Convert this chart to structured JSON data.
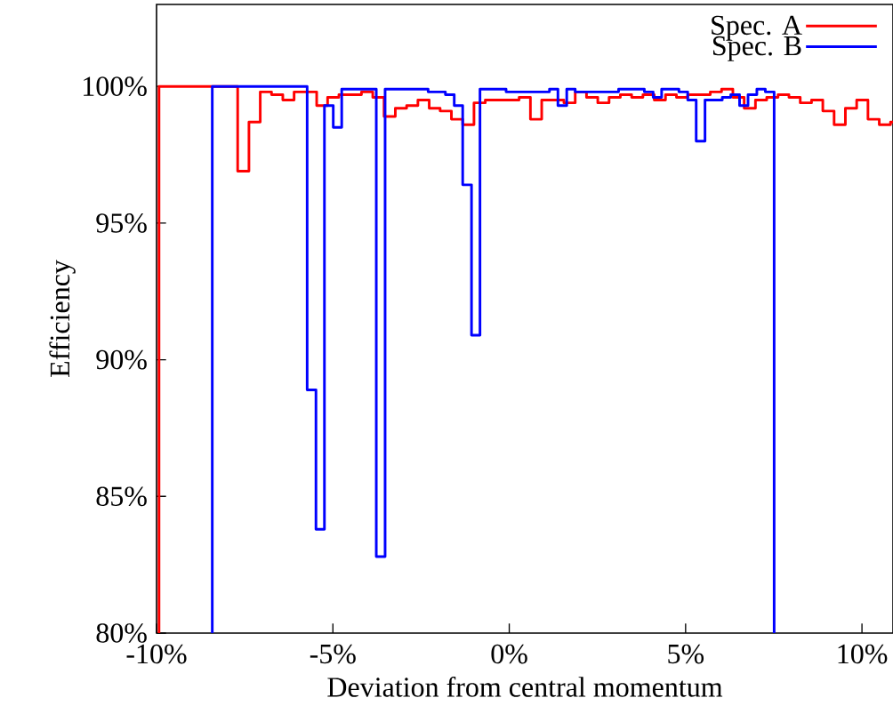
{
  "chart_data": {
    "type": "step",
    "xlabel": "Deviation from central momentum",
    "ylabel": "Efficiency",
    "xlim": [
      -10,
      10.88
    ],
    "ylim": [
      80,
      103
    ],
    "xticks": [
      {
        "value": -10,
        "label": "-10%"
      },
      {
        "value": -5,
        "label": "-5%"
      },
      {
        "value": 0,
        "label": "0%"
      },
      {
        "value": 5,
        "label": "5%"
      },
      {
        "value": 10,
        "label": "10%"
      }
    ],
    "yticks": [
      {
        "value": 80,
        "label": "80%"
      },
      {
        "value": 85,
        "label": "85%"
      },
      {
        "value": 90,
        "label": "90%"
      },
      {
        "value": 95,
        "label": "95%"
      },
      {
        "value": 100,
        "label": "100%"
      }
    ],
    "legend": "top right",
    "series": [
      {
        "name": "Spec. A",
        "color": "#ff0000",
        "x": [
          -9.93,
          -9.93,
          -7.7,
          -7.38,
          -7.06,
          -6.74,
          -6.42,
          -6.1,
          -5.46,
          -5.15,
          -4.83,
          -4.51,
          -4.19,
          -3.87,
          -3.55,
          -3.23,
          -2.91,
          -2.59,
          -2.27,
          -1.96,
          -1.64,
          -1.32,
          -1.0,
          -0.68,
          -0.36,
          -0.04,
          0.28,
          0.6,
          0.92,
          1.24,
          1.55,
          1.87,
          2.19,
          2.51,
          2.83,
          3.15,
          3.47,
          3.79,
          4.11,
          4.43,
          4.74,
          5.06,
          5.38,
          5.7,
          6.02,
          6.34,
          6.66,
          6.98,
          7.3,
          7.62,
          7.93,
          8.25,
          8.57,
          8.89,
          9.21,
          9.53,
          9.85,
          10.17,
          10.49,
          10.81,
          10.88
        ],
        "values": [
          80,
          100,
          96.9,
          98.7,
          99.8,
          99.7,
          99.5,
          99.8,
          99.3,
          99.6,
          99.7,
          99.7,
          99.8,
          99.6,
          98.9,
          99.2,
          99.3,
          99.5,
          99.2,
          99.1,
          98.8,
          98.6,
          99.4,
          99.5,
          99.5,
          99.5,
          99.6,
          98.8,
          99.5,
          99.5,
          99.4,
          99.8,
          99.6,
          99.4,
          99.6,
          99.7,
          99.6,
          99.7,
          99.5,
          99.7,
          99.6,
          99.7,
          99.7,
          99.8,
          99.9,
          99.6,
          99.2,
          99.5,
          99.6,
          99.7,
          99.6,
          99.4,
          99.5,
          99.1,
          98.6,
          99.2,
          99.5,
          98.8,
          98.6,
          98.7,
          98.7
        ]
      },
      {
        "name": "Spec. B",
        "color": "#0000ff",
        "x": [
          -8.42,
          -8.42,
          -5.73,
          -5.48,
          -5.24,
          -4.99,
          -4.75,
          -4.5,
          -4.26,
          -4.01,
          -3.77,
          -3.52,
          -3.28,
          -3.03,
          -2.79,
          -2.54,
          -2.3,
          -2.05,
          -1.81,
          -1.56,
          -1.32,
          -1.07,
          -0.83,
          -0.58,
          -0.34,
          -0.09,
          0.16,
          0.4,
          0.65,
          0.89,
          1.14,
          1.38,
          1.63,
          1.87,
          2.12,
          2.36,
          2.61,
          2.85,
          3.1,
          3.34,
          3.59,
          3.83,
          4.08,
          4.32,
          4.57,
          4.81,
          5.06,
          5.3,
          5.55,
          5.79,
          6.04,
          6.28,
          6.53,
          6.77,
          7.02,
          7.26,
          7.51
        ],
        "values": [
          80,
          100,
          88.9,
          83.8,
          99.3,
          98.5,
          99.9,
          99.9,
          99.9,
          99.9,
          82.8,
          99.9,
          99.9,
          99.9,
          99.9,
          99.9,
          99.8,
          99.8,
          99.7,
          99.3,
          96.4,
          90.9,
          99.9,
          99.9,
          99.9,
          99.8,
          99.8,
          99.8,
          99.8,
          99.8,
          99.9,
          99.3,
          99.9,
          99.8,
          99.8,
          99.8,
          99.8,
          99.8,
          99.9,
          99.9,
          99.9,
          99.8,
          99.6,
          99.9,
          99.9,
          99.8,
          99.5,
          98.0,
          99.5,
          99.5,
          99.6,
          99.7,
          99.3,
          99.7,
          99.9,
          99.8,
          80
        ]
      }
    ]
  }
}
